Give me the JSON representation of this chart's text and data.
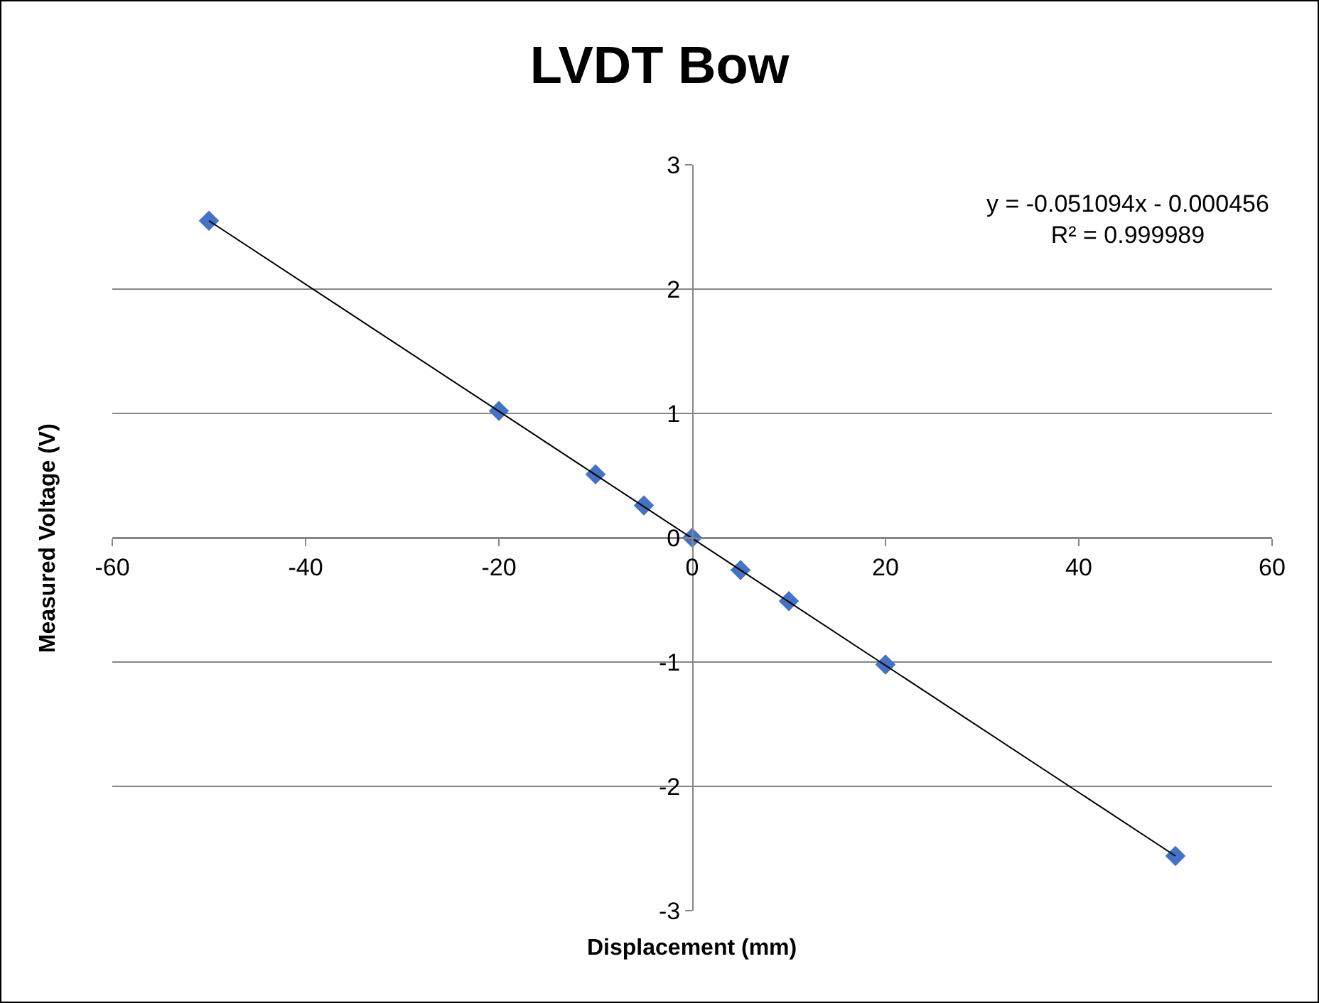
{
  "chart_data": {
    "type": "scatter",
    "title": "LVDT Bow",
    "xlabel": "Displacement (mm)",
    "ylabel": "Measured Voltage (V)",
    "x": [
      -50,
      -20,
      -10,
      -5,
      0,
      5,
      10,
      20,
      50
    ],
    "series": [
      {
        "color": "#4472c4",
        "marker": "diamond",
        "values": [
          2.55,
          1.02,
          0.51,
          0.26,
          0.0,
          -0.26,
          -0.51,
          -1.02,
          -2.56
        ]
      },
      {
        "type": "line",
        "color": "#000000",
        "marker": "none",
        "line_style": "solid",
        "x": [
          -50,
          50
        ],
        "values": [
          2.55,
          -2.56
        ]
      }
    ],
    "xlim": [
      -60,
      60
    ],
    "xticks": [
      -60,
      -40,
      -20,
      0,
      20,
      40,
      60
    ],
    "ylim": [
      -3,
      3
    ],
    "yticks": [
      -3,
      -2,
      -1,
      0,
      1,
      2,
      3
    ],
    "grid": "y",
    "annotations": [
      "y = -0.051094x - 0.000456\nR² = 0.999989"
    ]
  }
}
